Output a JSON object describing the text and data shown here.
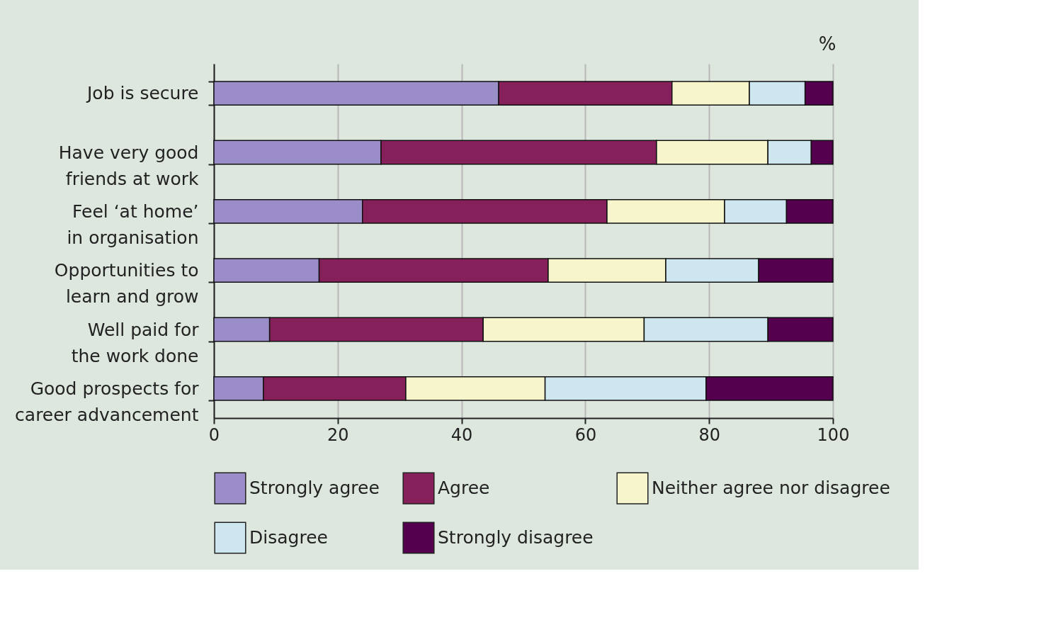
{
  "chart_data": {
    "type": "bar",
    "orientation": "horizontal",
    "stacked": true,
    "categories": [
      "Job is secure",
      "Have very good friends at work",
      "Feel ‘at home’ in organisation",
      "Opportunities to learn and grow",
      "Well paid for the work done",
      "Good prospects for career advancement"
    ],
    "series": [
      {
        "name": "Strongly agree",
        "color": "#9b8ec8",
        "values": [
          46,
          27,
          24,
          17,
          9,
          8
        ]
      },
      {
        "name": "Agree",
        "color": "#85205a",
        "values": [
          28,
          44.5,
          39.5,
          37,
          34.5,
          23
        ]
      },
      {
        "name": "Neither agree nor disagree",
        "color": "#f7f5cc",
        "values": [
          12.5,
          18,
          19,
          19,
          26,
          22.5
        ]
      },
      {
        "name": "Disagree",
        "color": "#cde6f0",
        "values": [
          9,
          7,
          10,
          15,
          20,
          26
        ]
      },
      {
        "name": "Strongly disagree",
        "color": "#55004f",
        "values": [
          4.5,
          3.5,
          7.5,
          12,
          10.5,
          20.5
        ]
      }
    ],
    "xlim": [
      0,
      100
    ],
    "xticks": [
      0,
      20,
      40,
      60,
      80,
      100
    ],
    "annotations": [
      "%"
    ],
    "grid": "x",
    "legend": "bottom"
  }
}
